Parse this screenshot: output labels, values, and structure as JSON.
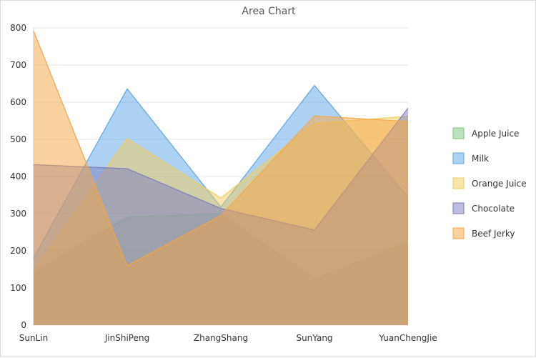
{
  "chart_data": {
    "type": "area",
    "title": "Area Chart",
    "xlabel": "",
    "ylabel": "",
    "categories": [
      "SunLin",
      "JinShiPeng",
      "ZhangShang",
      "SunYang",
      "YuanChengJie"
    ],
    "ylim": [
      0,
      800
    ],
    "yticks": [
      0,
      100,
      200,
      300,
      400,
      500,
      600,
      700,
      800
    ],
    "grid": true,
    "legend_position": "right",
    "series": [
      {
        "name": "Apple Juice",
        "color": "#7cc27c",
        "values": [
          143,
          291,
          300,
          125,
          224
        ]
      },
      {
        "name": "Milk",
        "color": "#5da5e8",
        "values": [
          181,
          636,
          318,
          645,
          344
        ]
      },
      {
        "name": "Orange Juice",
        "color": "#f2cc5c",
        "values": [
          147,
          502,
          342,
          543,
          562
        ]
      },
      {
        "name": "Chocolate",
        "color": "#7a7cc0",
        "values": [
          432,
          421,
          314,
          256,
          584
        ]
      },
      {
        "name": "Beef Jerky",
        "color": "#f5a544",
        "values": [
          792,
          160,
          295,
          563,
          548
        ]
      }
    ]
  }
}
